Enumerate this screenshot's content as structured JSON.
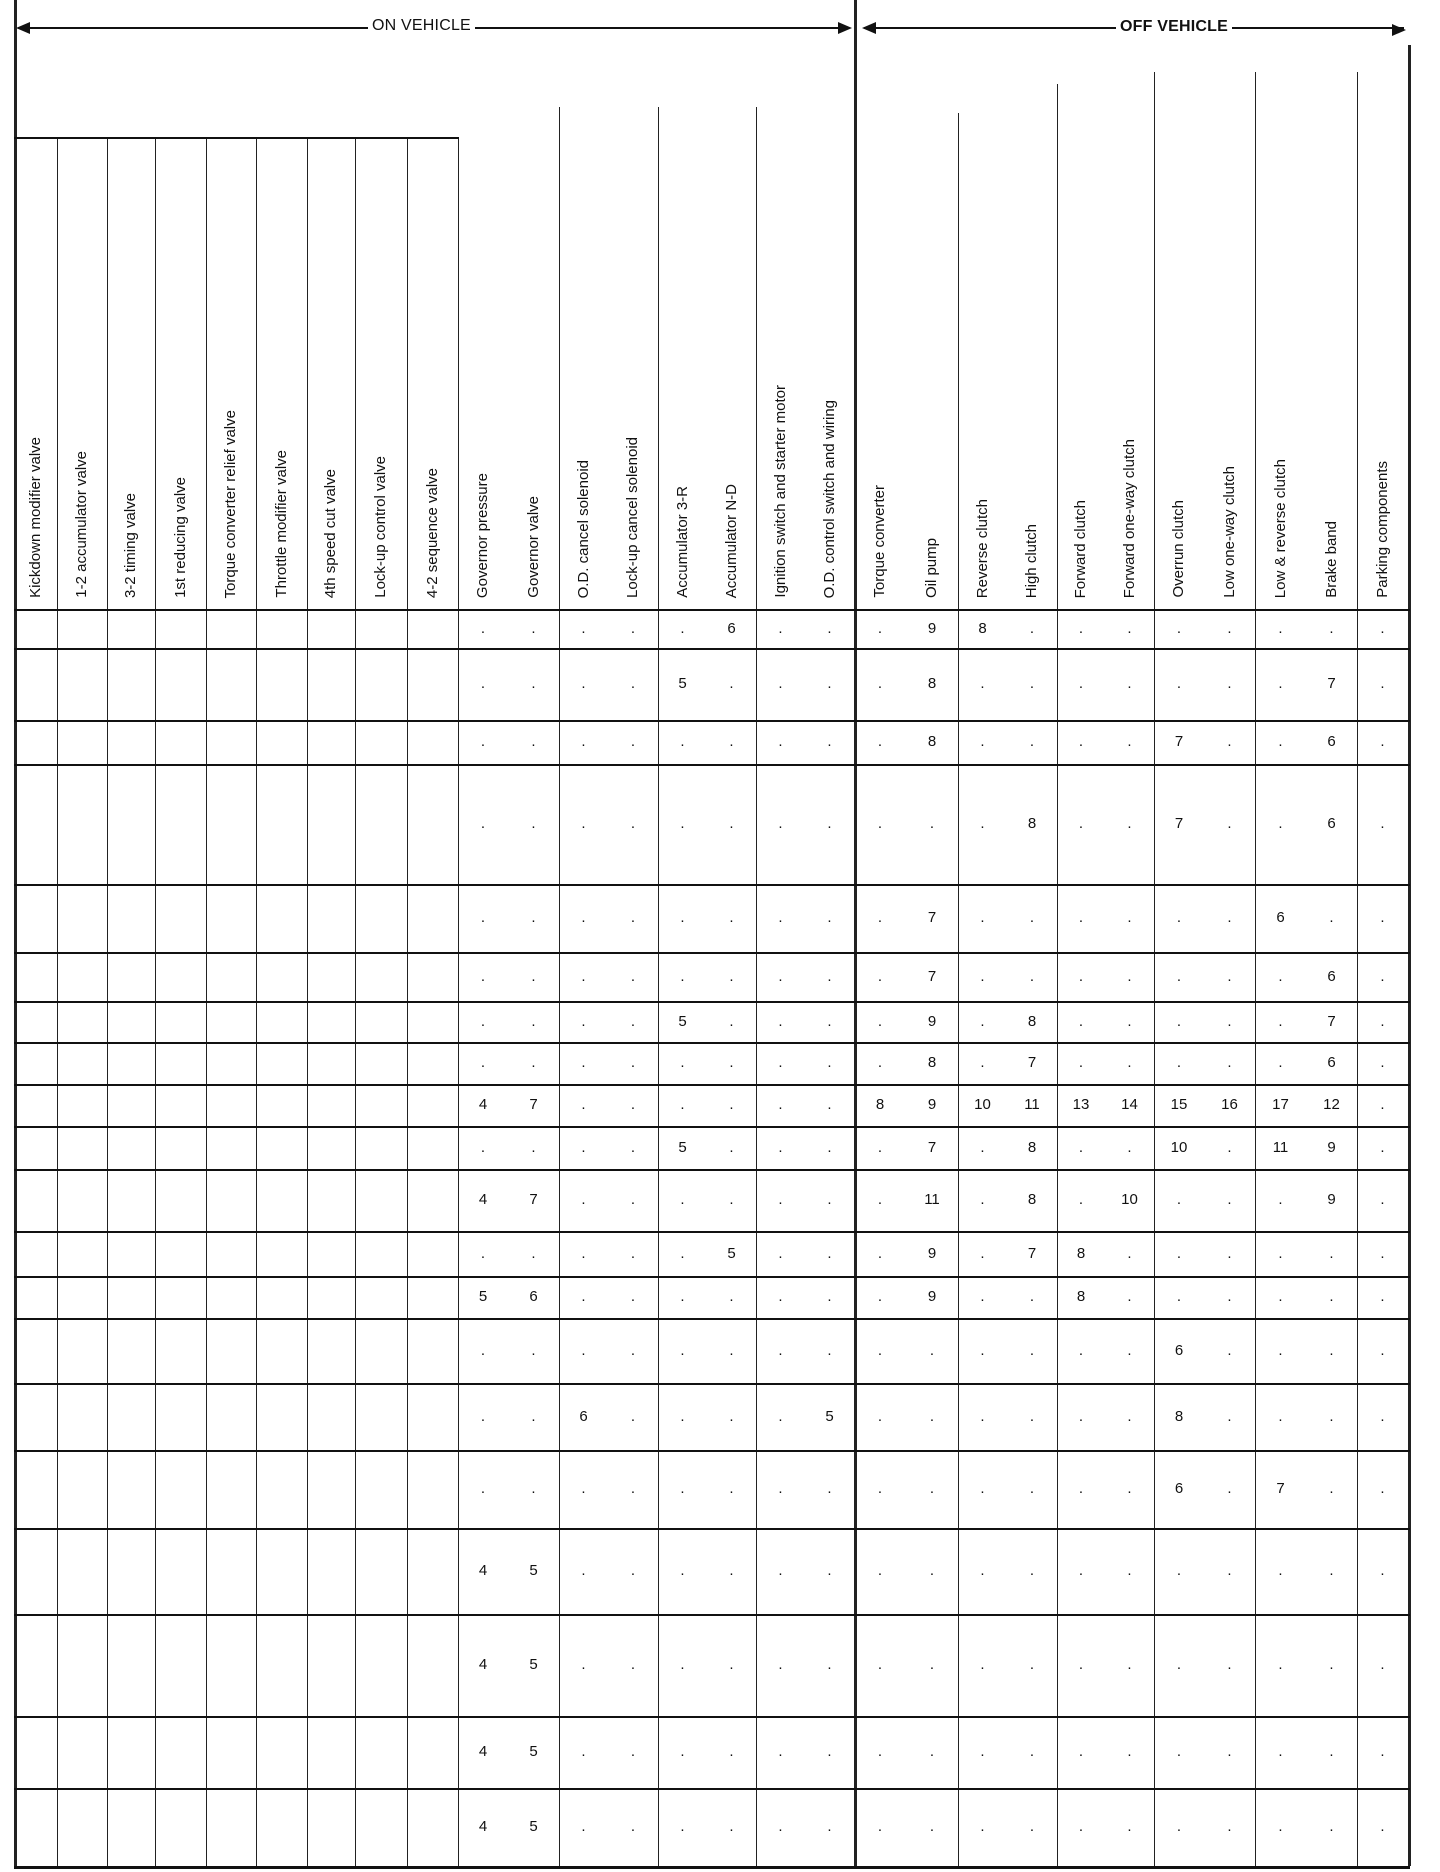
{
  "header": {
    "on_vehicle": "ON VEHICLE",
    "off_vehicle": "OFF VEHICLE"
  },
  "columns": [
    "Kickdown modifier valve",
    "1-2 accumulator valve",
    "3-2 timing valve",
    "1st reducing valve",
    "Torque converter relief valve",
    "Throttle modifier valve",
    "4th speed cut valve",
    "Lock-up control valve",
    "4-2 sequence valve",
    "Governor pressure",
    "Governor valve",
    "O.D. cancel solenoid",
    "Lock-up cancel solenoid",
    "Accumulator 3-R",
    "Accumulator N-D",
    "Ignition switch and starter motor",
    "O.D. control switch and wiring",
    "Torque converter",
    "Oil pump",
    "Reverse clutch",
    "High clutch",
    "Forward clutch",
    "Forward one-way clutch",
    "Overrun clutch",
    "Low one-way clutch",
    "Low & reverse clutch",
    "Brake band",
    "Parking components"
  ],
  "rows": [
    [
      ".",
      ".",
      ".",
      ".",
      ".",
      "6",
      ".",
      ".",
      ".",
      "9",
      "8",
      ".",
      ".",
      ".",
      ".",
      ".",
      ".",
      ".",
      "."
    ],
    [
      ".",
      ".",
      ".",
      ".",
      "5",
      ".",
      ".",
      ".",
      ".",
      "8",
      ".",
      ".",
      ".",
      ".",
      ".",
      ".",
      ".",
      "7",
      "."
    ],
    [
      ".",
      ".",
      ".",
      ".",
      ".",
      ".",
      ".",
      ".",
      ".",
      "8",
      ".",
      ".",
      ".",
      ".",
      "7",
      ".",
      ".",
      "6",
      "."
    ],
    [
      ".",
      ".",
      ".",
      ".",
      ".",
      ".",
      ".",
      ".",
      ".",
      ".",
      ".",
      "8",
      ".",
      ".",
      "7",
      ".",
      ".",
      "6",
      "."
    ],
    [
      ".",
      ".",
      ".",
      ".",
      ".",
      ".",
      ".",
      ".",
      ".",
      "7",
      ".",
      ".",
      ".",
      ".",
      ".",
      ".",
      "6",
      ".",
      "."
    ],
    [
      ".",
      ".",
      ".",
      ".",
      ".",
      ".",
      ".",
      ".",
      ".",
      "7",
      ".",
      ".",
      ".",
      ".",
      ".",
      ".",
      ".",
      "6",
      "."
    ],
    [
      ".",
      ".",
      ".",
      ".",
      "5",
      ".",
      ".",
      ".",
      ".",
      "9",
      ".",
      "8",
      ".",
      ".",
      ".",
      ".",
      ".",
      "7",
      "."
    ],
    [
      ".",
      ".",
      ".",
      ".",
      ".",
      ".",
      ".",
      ".",
      ".",
      "8",
      ".",
      "7",
      ".",
      ".",
      ".",
      ".",
      ".",
      "6",
      "."
    ],
    [
      "4",
      "7",
      ".",
      ".",
      ".",
      ".",
      ".",
      ".",
      "8",
      "9",
      "10",
      "11",
      "13",
      "14",
      "15",
      "16",
      "17",
      "12",
      "."
    ],
    [
      ".",
      ".",
      ".",
      ".",
      "5",
      ".",
      ".",
      ".",
      ".",
      "7",
      ".",
      "8",
      ".",
      ".",
      "10",
      ".",
      "11",
      "9",
      "."
    ],
    [
      "4",
      "7",
      ".",
      ".",
      ".",
      ".",
      ".",
      ".",
      ".",
      "11",
      ".",
      "8",
      ".",
      "10",
      ".",
      ".",
      ".",
      "9",
      "."
    ],
    [
      ".",
      ".",
      ".",
      ".",
      ".",
      "5",
      ".",
      ".",
      ".",
      "9",
      ".",
      "7",
      "8",
      ".",
      ".",
      ".",
      ".",
      ".",
      "."
    ],
    [
      "5",
      "6",
      ".",
      ".",
      ".",
      ".",
      ".",
      ".",
      ".",
      "9",
      ".",
      ".",
      "8",
      ".",
      ".",
      ".",
      ".",
      ".",
      "."
    ],
    [
      ".",
      ".",
      ".",
      ".",
      ".",
      ".",
      ".",
      ".",
      ".",
      ".",
      ".",
      ".",
      ".",
      ".",
      "6",
      ".",
      ".",
      ".",
      "."
    ],
    [
      ".",
      ".",
      "6",
      ".",
      ".",
      ".",
      ".",
      "5",
      ".",
      ".",
      ".",
      ".",
      ".",
      ".",
      "8",
      ".",
      ".",
      ".",
      "."
    ],
    [
      ".",
      ".",
      ".",
      ".",
      ".",
      ".",
      ".",
      ".",
      ".",
      ".",
      ".",
      ".",
      ".",
      ".",
      "6",
      ".",
      "7",
      ".",
      "."
    ],
    [
      "4",
      "5",
      ".",
      ".",
      ".",
      ".",
      ".",
      ".",
      ".",
      ".",
      ".",
      ".",
      ".",
      ".",
      ".",
      ".",
      ".",
      ".",
      "."
    ],
    [
      "4",
      "5",
      ".",
      ".",
      ".",
      ".",
      ".",
      ".",
      ".",
      ".",
      ".",
      ".",
      ".",
      ".",
      ".",
      ".",
      ".",
      ".",
      "."
    ],
    [
      "4",
      "5",
      ".",
      ".",
      ".",
      ".",
      ".",
      ".",
      ".",
      ".",
      ".",
      ".",
      ".",
      ".",
      ".",
      ".",
      ".",
      ".",
      "."
    ],
    [
      "4",
      "5",
      ".",
      ".",
      ".",
      ".",
      ".",
      ".",
      ".",
      ".",
      ".",
      ".",
      ".",
      ".",
      ".",
      ".",
      ".",
      ".",
      "."
    ]
  ]
}
